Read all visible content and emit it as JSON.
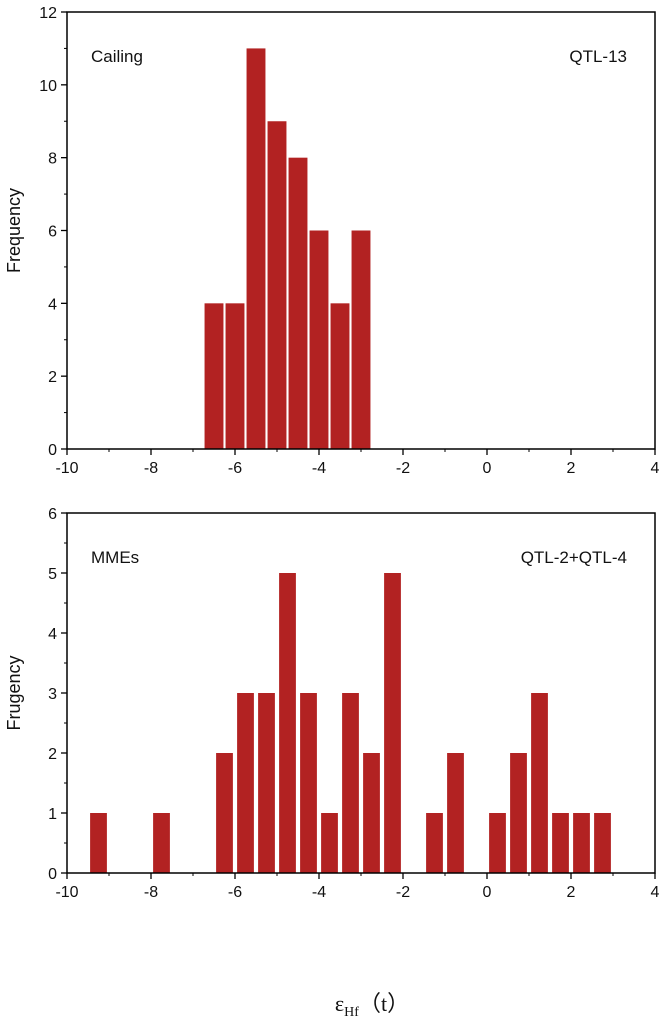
{
  "colors": {
    "bar": "#B22222",
    "axis": "#000000",
    "text": "#111111",
    "background": "#ffffff"
  },
  "shared_xlabel": {
    "main": "ε",
    "sub": "Hf",
    "suffix": "（t）"
  },
  "chart_data": [
    {
      "type": "bar",
      "panel_label": "Cailing",
      "sample_label": "QTL-13",
      "xlabel": "",
      "ylabel": "Frequency",
      "xlim": [
        -10,
        4
      ],
      "ylim": [
        0,
        12
      ],
      "bar_width": 0.45,
      "xticks": [
        -10,
        -8,
        -6,
        -4,
        -2,
        0,
        2,
        4
      ],
      "yticks": [
        0,
        2,
        4,
        6,
        8,
        10,
        12
      ],
      "grid": false,
      "bars": [
        {
          "x": -6.5,
          "y": 4
        },
        {
          "x": -6.0,
          "y": 4
        },
        {
          "x": -5.5,
          "y": 11
        },
        {
          "x": -5.0,
          "y": 9
        },
        {
          "x": -4.5,
          "y": 8
        },
        {
          "x": -4.0,
          "y": 6
        },
        {
          "x": -3.5,
          "y": 4
        },
        {
          "x": -3.0,
          "y": 6
        }
      ]
    },
    {
      "type": "bar",
      "panel_label": "MMEs",
      "sample_label": "QTL-2+QTL-4",
      "xlabel": "",
      "ylabel": "Frugency",
      "xlim": [
        -10,
        4
      ],
      "ylim": [
        0,
        6
      ],
      "bar_width": 0.4,
      "xticks": [
        -10,
        -8,
        -6,
        -4,
        -2,
        0,
        2,
        4
      ],
      "yticks": [
        0,
        1,
        2,
        3,
        4,
        5,
        6
      ],
      "grid": false,
      "bars": [
        {
          "x": -9.25,
          "y": 1
        },
        {
          "x": -7.75,
          "y": 1
        },
        {
          "x": -6.25,
          "y": 2
        },
        {
          "x": -5.75,
          "y": 3
        },
        {
          "x": -5.25,
          "y": 3
        },
        {
          "x": -4.75,
          "y": 5
        },
        {
          "x": -4.25,
          "y": 3
        },
        {
          "x": -3.75,
          "y": 1
        },
        {
          "x": -3.25,
          "y": 3
        },
        {
          "x": -2.75,
          "y": 2
        },
        {
          "x": -2.25,
          "y": 5
        },
        {
          "x": -1.25,
          "y": 1
        },
        {
          "x": -0.75,
          "y": 2
        },
        {
          "x": 0.25,
          "y": 1
        },
        {
          "x": 0.75,
          "y": 2
        },
        {
          "x": 1.25,
          "y": 3
        },
        {
          "x": 1.75,
          "y": 1
        },
        {
          "x": 2.25,
          "y": 1
        },
        {
          "x": 2.75,
          "y": 1
        }
      ]
    }
  ]
}
